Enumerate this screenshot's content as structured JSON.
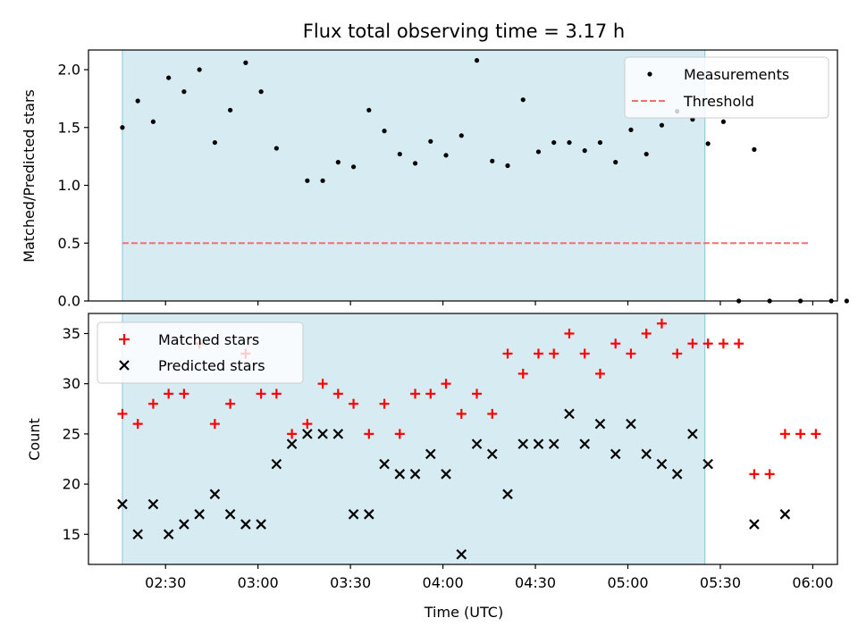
{
  "title": "Flux total observing time = 3.17 h",
  "chart_data": [
    {
      "type": "scatter",
      "ylabel": "Matched/Predicted stars",
      "ylim": [
        0,
        2.17
      ],
      "yticks": [
        0.0,
        0.5,
        1.0,
        1.5,
        2.0
      ],
      "ytick_labels": [
        "0.0",
        "0.5",
        "1.0",
        "1.5",
        "2.0"
      ],
      "xlim_minutes": [
        125,
        368
      ],
      "shaded_interval_minutes": [
        136,
        325
      ],
      "legend_placement": "top-right",
      "series": [
        {
          "name": "Measurements",
          "color": "#000000",
          "marker": "dot",
          "x_minutes": [
            136,
            141,
            146,
            151,
            156,
            161,
            166,
            171,
            176,
            181,
            186,
            196,
            201,
            206,
            211,
            216,
            221,
            226,
            231,
            236,
            241,
            246,
            251,
            256,
            261,
            266,
            271,
            276,
            281,
            286,
            291,
            296,
            301,
            306,
            311,
            316,
            321,
            326,
            331,
            336,
            346,
            356,
            366,
            371,
            341
          ],
          "y": [
            1.5,
            1.73,
            1.55,
            1.93,
            1.81,
            2.0,
            1.37,
            1.65,
            2.06,
            1.81,
            1.32,
            1.04,
            1.04,
            1.2,
            1.16,
            1.65,
            1.47,
            1.27,
            1.19,
            1.38,
            1.26,
            1.43,
            2.08,
            1.21,
            1.17,
            1.74,
            1.29,
            1.37,
            1.37,
            1.3,
            1.37,
            1.2,
            1.48,
            1.27,
            1.52,
            1.64,
            1.57,
            1.36,
            1.55,
            0.0,
            0.0,
            0.0,
            0.0,
            0.0,
            1.31
          ]
        },
        {
          "name": "Threshold",
          "color": "#f07070",
          "style": "dashed",
          "x_minutes": [
            136,
            359
          ],
          "y": [
            0.5,
            0.5
          ]
        }
      ]
    },
    {
      "type": "scatter",
      "xlabel": "Time (UTC)",
      "ylabel": "Count",
      "ylim": [
        12,
        37
      ],
      "yticks": [
        15,
        20,
        25,
        30,
        35
      ],
      "ytick_labels": [
        "15",
        "20",
        "25",
        "30",
        "35"
      ],
      "xlim_minutes": [
        125,
        368
      ],
      "xticks_minutes": [
        150,
        180,
        210,
        240,
        270,
        300,
        330,
        360
      ],
      "xtick_labels": [
        "02:30",
        "03:00",
        "03:30",
        "04:00",
        "04:30",
        "05:00",
        "05:30",
        "06:00"
      ],
      "shaded_interval_minutes": [
        136,
        325
      ],
      "legend_placement": "top-left",
      "series": [
        {
          "name": "Matched stars",
          "color": "#ff0000",
          "marker": "plus",
          "x_minutes": [
            136,
            141,
            146,
            151,
            156,
            161,
            166,
            171,
            176,
            181,
            186,
            191,
            196,
            201,
            206,
            211,
            216,
            221,
            226,
            231,
            236,
            241,
            246,
            251,
            256,
            261,
            266,
            271,
            276,
            281,
            286,
            291,
            296,
            301,
            306,
            311,
            316,
            321,
            326,
            331,
            336,
            341,
            346,
            351,
            356,
            361
          ],
          "y": [
            27,
            26,
            28,
            29,
            29,
            34,
            26,
            28,
            33,
            29,
            29,
            25,
            26,
            30,
            29,
            28,
            25,
            28,
            25,
            29,
            29,
            30,
            27,
            29,
            27,
            33,
            31,
            33,
            33,
            35,
            33,
            31,
            34,
            33,
            35,
            36,
            33,
            34,
            34,
            34,
            34,
            21,
            21,
            25,
            25,
            25
          ]
        },
        {
          "name": "Predicted stars",
          "color": "#000000",
          "marker": "x",
          "x_minutes": [
            136,
            141,
            146,
            151,
            156,
            161,
            166,
            171,
            176,
            181,
            186,
            191,
            196,
            201,
            206,
            211,
            216,
            221,
            226,
            231,
            236,
            241,
            246,
            251,
            256,
            261,
            266,
            271,
            276,
            281,
            286,
            291,
            296,
            301,
            306,
            311,
            316,
            321,
            326,
            341,
            351
          ],
          "y": [
            18,
            15,
            18,
            15,
            16,
            17,
            19,
            17,
            16,
            16,
            22,
            24,
            25,
            25,
            25,
            17,
            17,
            22,
            21,
            21,
            23,
            21,
            13,
            24,
            23,
            19,
            24,
            24,
            24,
            27,
            24,
            26,
            23,
            26,
            23,
            22,
            21,
            25,
            22,
            16,
            17
          ]
        }
      ]
    }
  ]
}
